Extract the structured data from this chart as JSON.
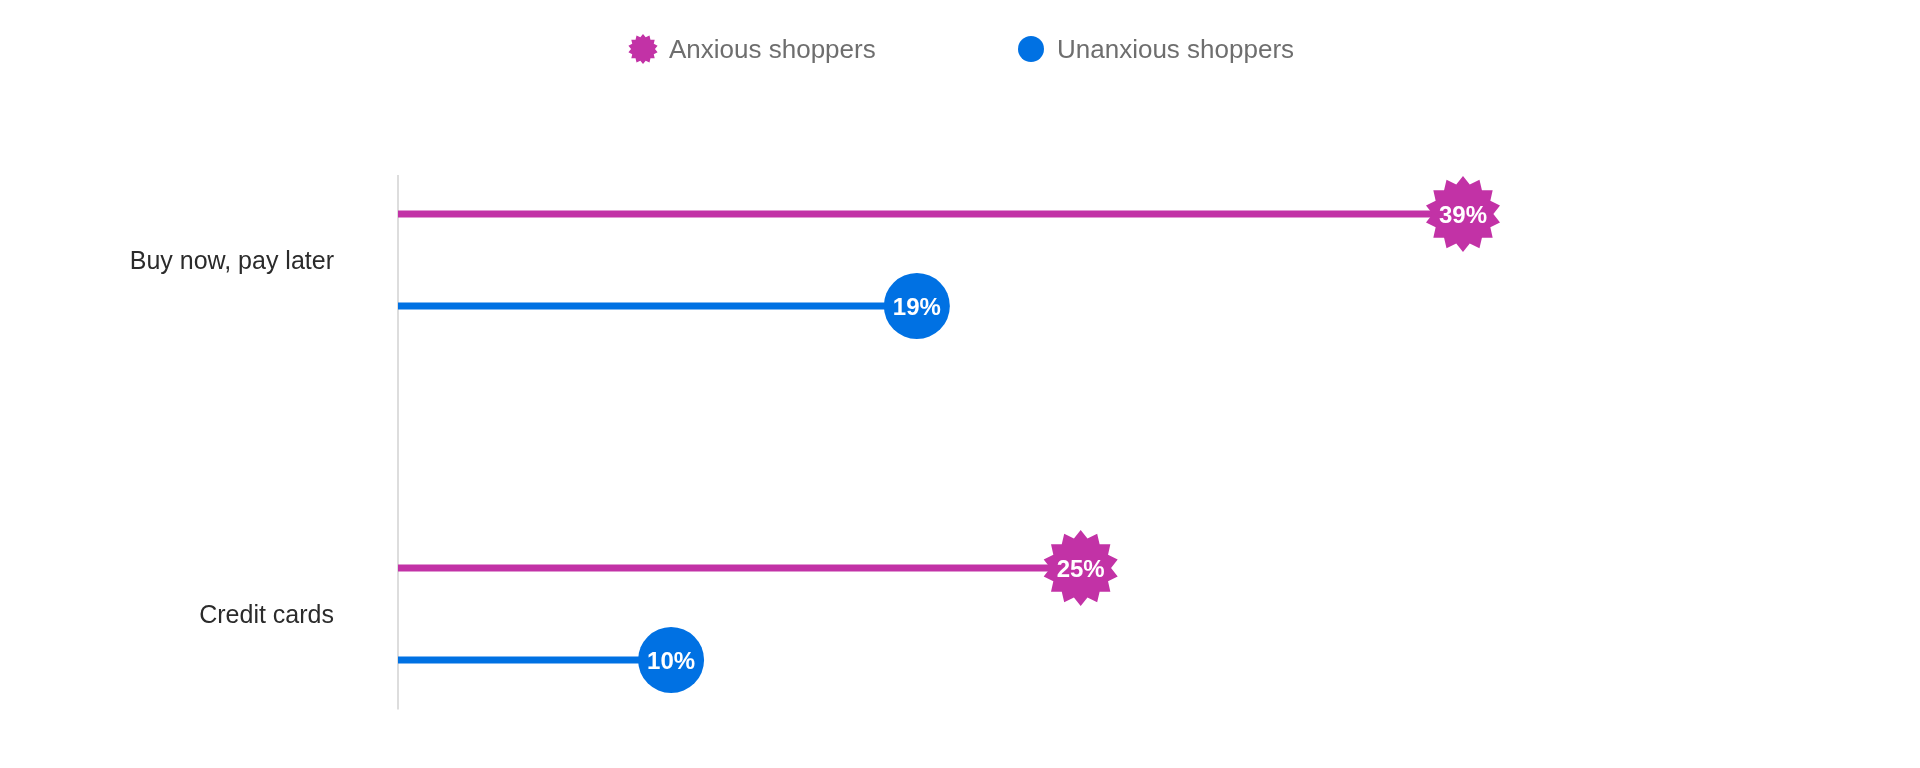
{
  "chart_data": {
    "type": "lollipop",
    "orientation": "horizontal",
    "categories": [
      "Buy now, pay later",
      "Credit cards"
    ],
    "series": [
      {
        "name": "Anxious shoppers",
        "color": "#c232a6",
        "marker": "star",
        "values": [
          39,
          25
        ],
        "value_labels": [
          "39%",
          "25%"
        ]
      },
      {
        "name": "Unanxious shoppers",
        "color": "#0071e3",
        "marker": "circle",
        "values": [
          19,
          10
        ],
        "value_labels": [
          "19%",
          "10%"
        ]
      }
    ],
    "tick_labels": "y",
    "legend": "top"
  }
}
